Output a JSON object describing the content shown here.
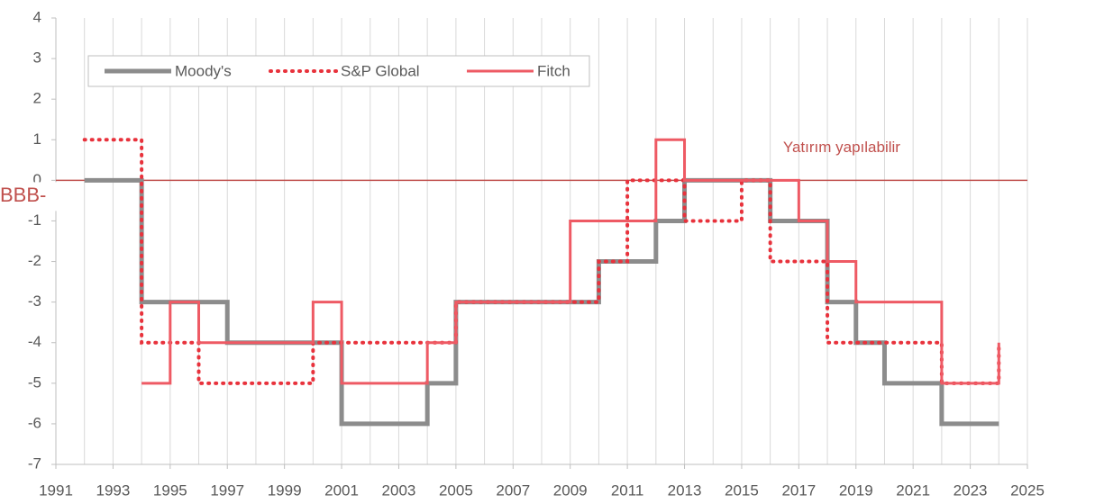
{
  "chart_data": {
    "type": "step",
    "xlim": [
      1991,
      2025
    ],
    "xticks": [
      1991,
      1993,
      1995,
      1997,
      1999,
      2001,
      2003,
      2005,
      2007,
      2009,
      2011,
      2013,
      2015,
      2017,
      2019,
      2021,
      2023,
      2025
    ],
    "x_minor_ticks": [
      1992,
      1994,
      1996,
      1998,
      2000,
      2002,
      2004,
      2006,
      2008,
      2010,
      2012,
      2014,
      2016,
      2018,
      2020,
      2022,
      2024
    ],
    "ylim": [
      -7,
      4
    ],
    "yticks": [
      -7,
      -6,
      -5,
      -4,
      -3,
      -2,
      -1,
      0,
      1,
      2,
      3,
      4
    ],
    "grid": true,
    "legend": "top-left",
    "series": [
      {
        "name": "Moody's",
        "color": "#8c8c8c",
        "style": "solid",
        "x": [
          1992,
          1994,
          1997,
          2001,
          2004,
          2005,
          2010,
          2012,
          2013,
          2016,
          2018,
          2019,
          2020,
          2022,
          2024
        ],
        "values": [
          0,
          -3,
          -4,
          -6,
          -5,
          -3,
          -2,
          -1,
          0,
          -1,
          -3,
          -4,
          -5,
          -6,
          -6
        ]
      },
      {
        "name": "S&P Global",
        "color": "#e8323c",
        "style": "dotted",
        "x": [
          1992,
          1994,
          1996,
          2000,
          2005,
          2010,
          2011,
          2013,
          2015,
          2016,
          2018,
          2022,
          2024
        ],
        "values": [
          1,
          -4,
          -5,
          -4,
          -3,
          -2,
          0,
          -1,
          0,
          -2,
          -4,
          -5,
          -4
        ]
      },
      {
        "name": "Fitch",
        "color": "#ee5a64",
        "style": "solid",
        "x": [
          1994,
          1995,
          1996,
          2000,
          2001,
          2004,
          2005,
          2009,
          2012,
          2013,
          2017,
          2018,
          2019,
          2022,
          2024
        ],
        "values": [
          -5,
          -3,
          -4,
          -3,
          -5,
          -4,
          -3,
          -1,
          1,
          0,
          -1,
          -2,
          -3,
          -5,
          -4
        ]
      }
    ],
    "reference_line": {
      "value": 0,
      "color": "#c0504d",
      "label": "BBB-",
      "annotation": "Yatırım yapılabilir"
    }
  }
}
